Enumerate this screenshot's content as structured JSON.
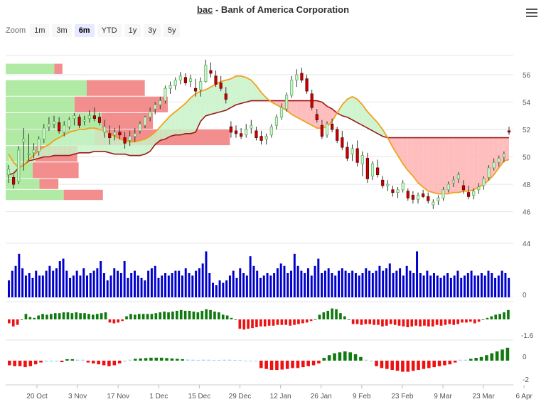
{
  "header": {
    "ticker": "bac",
    "title_rest": " - Bank of America Corporation"
  },
  "zoom": {
    "label": "Zoom",
    "buttons": [
      "1m",
      "3m",
      "6m",
      "YTD",
      "1y",
      "3y",
      "5y"
    ],
    "selected": "6m"
  },
  "menu_icon": "hamburger-menu-icon",
  "colors": {
    "up": "#5cb85c",
    "down": "#cc0000",
    "kijun": "#9a1b1b",
    "tenkan": "#f0a21c",
    "cloud_bull": "#c8f2c8",
    "cloud_bear": "#ffb3b3",
    "volume": "#0000cc",
    "vp_green": "#a8e89a",
    "vp_red": "#f28282",
    "vp_brown": "#d2a478",
    "macd_pos": "#107a10",
    "macd_neg": "#ee1111",
    "hist_light": "#9fd6ec"
  },
  "chart_data": [
    {
      "type": "candlestick",
      "title": "",
      "yticks": [
        46,
        48,
        50,
        52,
        54,
        56
      ],
      "ylim": [
        45.2,
        57.4
      ],
      "candles_approx": [
        [
          48.7,
          49.4,
          48.1,
          49.1
        ],
        [
          48.5,
          48.7,
          47.7,
          48.0
        ],
        [
          48.2,
          50.8,
          48.0,
          50.5
        ],
        [
          51.1,
          52.1,
          49.0,
          51.3
        ],
        [
          50.2,
          51.7,
          49.7,
          50.2
        ],
        [
          50.3,
          51.0,
          49.9,
          50.5
        ],
        [
          50.4,
          51.5,
          50.1,
          51.3
        ],
        [
          51.3,
          52.4,
          51.0,
          52.1
        ],
        [
          52.2,
          52.9,
          51.9,
          52.4
        ],
        [
          52.4,
          53.0,
          52.1,
          52.6
        ],
        [
          52.5,
          52.9,
          51.7,
          51.9
        ],
        [
          51.8,
          52.6,
          51.5,
          52.3
        ],
        [
          52.2,
          52.9,
          52.0,
          52.7
        ],
        [
          52.8,
          53.2,
          52.3,
          53.0
        ],
        [
          52.9,
          53.1,
          52.1,
          52.3
        ],
        [
          52.6,
          53.0,
          52.3,
          52.7
        ],
        [
          52.8,
          53.4,
          52.5,
          53.0
        ],
        [
          53.0,
          53.6,
          52.6,
          52.8
        ],
        [
          52.9,
          53.2,
          52.3,
          52.5
        ],
        [
          51.8,
          52.7,
          51.4,
          52.2
        ],
        [
          51.7,
          52.3,
          50.9,
          51.4
        ],
        [
          51.6,
          52.1,
          51.2,
          51.8
        ],
        [
          51.8,
          52.3,
          51.3,
          51.6
        ],
        [
          51.4,
          51.8,
          50.6,
          51.0
        ],
        [
          51.2,
          51.9,
          50.8,
          51.5
        ],
        [
          51.5,
          52.1,
          51.1,
          51.7
        ],
        [
          51.9,
          52.6,
          51.7,
          52.4
        ],
        [
          52.3,
          53.0,
          52.1,
          52.9
        ],
        [
          52.9,
          53.6,
          52.6,
          53.3
        ],
        [
          53.5,
          54.0,
          53.1,
          53.8
        ],
        [
          53.8,
          54.4,
          53.5,
          54.1
        ],
        [
          54.1,
          55.2,
          53.9,
          55.0
        ],
        [
          55.0,
          55.5,
          54.6,
          55.2
        ],
        [
          55.2,
          55.8,
          54.9,
          55.6
        ],
        [
          55.6,
          56.2,
          55.3,
          55.9
        ],
        [
          55.8,
          56.1,
          55.2,
          55.4
        ],
        [
          55.5,
          56.0,
          55.1,
          55.7
        ],
        [
          55.0,
          55.7,
          54.4,
          54.8
        ],
        [
          54.9,
          55.8,
          54.4,
          55.5
        ],
        [
          55.5,
          57.1,
          55.4,
          56.7
        ],
        [
          56.3,
          56.9,
          55.8,
          56.1
        ],
        [
          55.9,
          56.3,
          55.1,
          55.3
        ],
        [
          55.4,
          55.9,
          54.8,
          55.0
        ],
        [
          54.6,
          55.1,
          53.9,
          54.2
        ],
        [
          52.2,
          52.6,
          51.4,
          51.8
        ],
        [
          51.9,
          52.3,
          51.4,
          51.7
        ],
        [
          51.7,
          52.1,
          51.3,
          51.5
        ],
        [
          51.6,
          52.4,
          51.4,
          52.0
        ],
        [
          52.1,
          52.7,
          51.7,
          52.3
        ],
        [
          51.9,
          52.2,
          51.2,
          51.4
        ],
        [
          51.5,
          51.9,
          50.9,
          51.2
        ],
        [
          51.3,
          51.7,
          50.9,
          51.5
        ],
        [
          51.6,
          52.4,
          51.4,
          52.2
        ],
        [
          52.3,
          53.1,
          52.0,
          52.9
        ],
        [
          52.9,
          53.9,
          52.7,
          53.6
        ],
        [
          53.5,
          54.7,
          53.3,
          54.5
        ],
        [
          54.5,
          55.9,
          54.3,
          55.6
        ],
        [
          55.6,
          56.4,
          55.1,
          56.0
        ],
        [
          56.1,
          56.5,
          55.4,
          55.6
        ],
        [
          55.7,
          56.0,
          54.6,
          54.8
        ],
        [
          54.6,
          54.9,
          53.4,
          53.6
        ],
        [
          53.1,
          53.5,
          52.5,
          52.7
        ],
        [
          52.3,
          52.7,
          51.3,
          51.5
        ],
        [
          51.6,
          52.6,
          51.4,
          52.4
        ],
        [
          52.4,
          52.8,
          51.8,
          52.0
        ],
        [
          52.0,
          52.2,
          51.0,
          51.2
        ],
        [
          51.4,
          51.9,
          50.5,
          50.7
        ],
        [
          50.7,
          51.1,
          49.7,
          49.9
        ],
        [
          50.2,
          50.9,
          49.7,
          50.6
        ],
        [
          50.6,
          51.2,
          49.3,
          49.6
        ],
        [
          49.5,
          50.4,
          48.6,
          50.1
        ],
        [
          49.9,
          50.3,
          48.1,
          48.4
        ],
        [
          48.6,
          49.7,
          48.3,
          49.5
        ],
        [
          49.2,
          49.8,
          48.5,
          48.7
        ],
        [
          48.3,
          48.6,
          47.7,
          47.9
        ],
        [
          47.9,
          48.3,
          47.5,
          48.0
        ],
        [
          47.6,
          47.9,
          47.1,
          47.4
        ],
        [
          47.4,
          47.8,
          47.0,
          47.6
        ],
        [
          47.6,
          48.3,
          47.4,
          48.1
        ],
        [
          47.5,
          47.7,
          46.8,
          47.0
        ],
        [
          47.2,
          47.5,
          46.6,
          46.9
        ],
        [
          46.9,
          47.4,
          46.6,
          47.2
        ],
        [
          47.3,
          47.6,
          47.0,
          47.1
        ],
        [
          47.1,
          47.4,
          46.6,
          46.8
        ],
        [
          46.5,
          46.9,
          46.2,
          46.7
        ],
        [
          46.8,
          47.2,
          46.5,
          47.0
        ],
        [
          47.0,
          47.8,
          46.8,
          47.6
        ],
        [
          47.6,
          48.2,
          47.4,
          48.0
        ],
        [
          48.1,
          48.6,
          47.8,
          48.3
        ],
        [
          48.4,
          48.9,
          48.1,
          48.7
        ],
        [
          47.9,
          48.3,
          47.3,
          47.6
        ],
        [
          47.4,
          47.9,
          46.9,
          47.1
        ],
        [
          47.2,
          47.7,
          46.9,
          47.5
        ],
        [
          47.6,
          48.1,
          47.3,
          47.8
        ],
        [
          47.9,
          48.6,
          47.6,
          48.4
        ],
        [
          48.5,
          49.4,
          48.3,
          49.2
        ],
        [
          49.2,
          49.9,
          49.0,
          49.6
        ],
        [
          49.6,
          50.1,
          49.3,
          49.9
        ],
        [
          50.0,
          50.4,
          49.6,
          50.2
        ],
        [
          51.9,
          52.2,
          51.6,
          51.8
        ]
      ],
      "kijun_approx": [
        48.7,
        48.8,
        49.2,
        49.4,
        49.7,
        49.8,
        49.9,
        50.0,
        50.0,
        50.1,
        50.1,
        50.1,
        50.1,
        50.2,
        50.3,
        50.3,
        50.3,
        50.4,
        50.4,
        50.4,
        50.3,
        50.2,
        50.2,
        50.2,
        50.1,
        50.1,
        50.1,
        50.2,
        50.4,
        50.9,
        51.2,
        51.3,
        51.5,
        51.6,
        51.6,
        51.7,
        51.7,
        51.8,
        52.6,
        53.0,
        53.1,
        53.2,
        53.3,
        53.4,
        53.6,
        53.8,
        53.9,
        54.0,
        54.1,
        54.1,
        54.1,
        54.1,
        54.1,
        54.1,
        54.1,
        54.1,
        54.1,
        54.1,
        54.1,
        54.1,
        54.1,
        54.1,
        54.0,
        53.7,
        53.5,
        53.2,
        53.0,
        52.9,
        52.7,
        52.5,
        52.3,
        52.1,
        51.9,
        51.7,
        51.5,
        51.4,
        51.4,
        51.4,
        51.4,
        51.4,
        51.4,
        51.4,
        51.4,
        51.4,
        51.4,
        51.4,
        51.4,
        51.4,
        51.4,
        51.4,
        51.4,
        51.4,
        51.4,
        51.4,
        51.4,
        51.4,
        51.4,
        51.4,
        51.4,
        51.4
      ],
      "tenkan_approx": [
        50.2,
        49.6,
        49.2,
        49.4,
        49.8,
        50.1,
        50.5,
        50.7,
        50.9,
        51.2,
        51.4,
        51.6,
        51.8,
        51.9,
        52.0,
        52.0,
        52.1,
        52.1,
        52.0,
        51.9,
        51.7,
        51.5,
        51.3,
        51.2,
        51.1,
        51.1,
        51.2,
        51.3,
        51.5,
        51.8,
        52.2,
        52.6,
        53.0,
        53.3,
        53.6,
        53.9,
        54.3,
        54.6,
        54.8,
        54.9,
        55.1,
        55.3,
        55.5,
        55.6,
        55.7,
        55.9,
        55.9,
        55.8,
        55.6,
        55.2,
        54.7,
        54.3,
        54.0,
        53.8,
        53.6,
        53.4,
        53.1,
        52.9,
        52.7,
        52.5,
        52.3,
        52.1,
        52.1,
        52.2,
        52.6,
        53.2,
        53.8,
        54.2,
        54.4,
        54.2,
        53.8,
        53.3,
        52.9,
        52.5,
        52.0,
        51.4,
        50.7,
        50.1,
        49.5,
        49.0,
        48.6,
        48.1,
        47.8,
        47.5,
        47.4,
        47.3,
        47.3,
        47.3,
        47.4,
        47.4,
        47.5,
        47.5,
        47.6,
        47.8,
        48.0,
        48.3,
        48.7,
        49.2,
        49.7,
        49.8
      ],
      "volume_profile": [
        {
          "price_low": 56.0,
          "price_high": 56.8,
          "up": 0.36,
          "down": 0.06
        },
        {
          "price_low": 54.4,
          "price_high": 55.6,
          "up": 0.6,
          "down": 0.43
        },
        {
          "price_low": 53.2,
          "price_high": 54.4,
          "up": 0.51,
          "down": 0.69
        },
        {
          "price_low": 52.0,
          "price_high": 53.2,
          "up": 0.71,
          "down": 0.38
        },
        {
          "price_low": 50.8,
          "price_high": 52.0,
          "up": 0.66,
          "down": 1.0
        },
        {
          "price_low": 49.6,
          "price_high": 50.8,
          "up": 0.22,
          "down": 0.31
        },
        {
          "price_low": 48.4,
          "price_high": 49.6,
          "up": 0.2,
          "down": 0.34
        },
        {
          "price_low": 47.6,
          "price_high": 48.4,
          "up": 0.25,
          "down": 0.14
        },
        {
          "price_low": 46.8,
          "price_high": 47.6,
          "up": 0.43,
          "down": 0.29
        }
      ],
      "volume_label_top": "44",
      "volume_label_bottom": "0",
      "volume_relative": [
        0.35,
        0.55,
        0.65,
        0.9,
        0.6,
        0.45,
        0.5,
        0.4,
        0.55,
        0.45,
        0.45,
        0.55,
        0.65,
        0.55,
        0.6,
        0.75,
        0.8,
        0.55,
        0.4,
        0.45,
        0.55,
        0.45,
        0.6,
        0.45,
        0.5,
        0.55,
        0.6,
        0.75,
        0.5,
        0.35,
        0.45,
        0.6,
        0.55,
        0.5,
        0.75,
        0.4,
        0.5,
        0.55,
        0.45,
        0.4,
        0.35,
        0.55,
        0.6,
        0.65,
        0.4,
        0.45,
        0.5,
        0.45,
        0.5,
        0.55,
        0.55,
        0.45,
        0.6,
        0.5,
        0.45,
        0.55,
        0.6,
        0.7,
        0.95,
        0.5,
        0.3,
        0.25,
        0.35,
        0.3,
        0.35,
        0.45,
        0.55,
        0.4,
        0.6,
        0.5,
        0.45,
        0.85,
        0.65,
        0.55,
        0.4,
        0.45,
        0.5,
        0.45,
        0.5,
        0.6,
        0.7,
        0.65,
        0.5,
        0.55,
        0.9,
        0.65,
        0.55,
        0.5,
        0.6,
        0.45,
        0.65,
        0.8,
        0.5,
        0.55,
        0.6,
        0.5,
        0.45,
        0.55,
        0.6,
        0.55,
        0.5,
        0.55,
        0.5,
        0.45,
        0.5,
        0.6,
        0.55,
        0.5,
        0.55,
        0.65,
        0.55,
        0.6,
        0.7,
        0.5,
        0.55,
        0.6,
        0.45,
        0.65,
        0.55,
        0.5,
        0.95,
        0.5,
        0.45,
        0.55,
        0.45,
        0.5,
        0.45,
        0.4,
        0.45,
        0.5,
        0.4,
        0.45,
        0.55,
        0.4,
        0.45,
        0.5,
        0.55,
        0.45,
        0.45,
        0.5,
        0.45,
        0.55,
        0.5,
        0.4,
        0.45,
        0.55,
        0.5,
        0.4
      ],
      "macd_label": "-1.6",
      "macd_relative": [
        -0.25,
        -0.45,
        -0.35,
        0.0,
        0.35,
        0.15,
        0.1,
        0.25,
        0.35,
        0.3,
        0.35,
        0.4,
        0.4,
        0.45,
        0.45,
        0.4,
        0.45,
        0.4,
        0.4,
        0.35,
        0.3,
        0.35,
        0.4,
        0.45,
        -0.2,
        -0.25,
        -0.2,
        -0.1,
        0.2,
        0.35,
        0.3,
        0.35,
        0.35,
        0.35,
        0.35,
        0.4,
        0.45,
        0.5,
        0.45,
        0.5,
        0.55,
        0.6,
        0.55,
        0.55,
        0.5,
        0.45,
        0.55,
        0.65,
        0.6,
        0.5,
        0.45,
        0.3,
        0.25,
        0.1,
        0.0,
        -0.6,
        -0.65,
        -0.6,
        -0.55,
        -0.5,
        -0.45,
        -0.45,
        -0.4,
        -0.4,
        -0.35,
        -0.35,
        -0.35,
        -0.4,
        -0.35,
        -0.3,
        -0.25,
        -0.2,
        -0.1,
        0.0,
        0.3,
        0.45,
        0.55,
        0.7,
        0.65,
        0.4,
        0.2,
        0.0,
        -0.3,
        -0.3,
        -0.35,
        -0.3,
        -0.3,
        -0.35,
        -0.35,
        -0.45,
        -0.4,
        -0.3,
        -0.35,
        -0.4,
        -0.45,
        -0.5,
        -0.45,
        -0.4,
        -0.45,
        -0.4,
        -0.45,
        -0.45,
        -0.35,
        -0.4,
        -0.35,
        -0.3,
        -0.35,
        -0.3,
        -0.2,
        -0.2,
        -0.15,
        -0.25,
        -0.15,
        0.0,
        0.1,
        0.2,
        0.3,
        0.35,
        0.45,
        0.6
      ],
      "hist_label_top": "0",
      "hist_label_bottom": "-2",
      "hist_relative": [
        -0.25,
        -0.3,
        -0.3,
        -0.35,
        -0.3,
        -0.2,
        -0.1,
        -0.05,
        -0.05,
        -0.05,
        -0.08,
        0.08,
        0.08,
        0.05,
        0.05,
        -0.1,
        -0.15,
        -0.2,
        -0.25,
        -0.3,
        -0.25,
        -0.15,
        -0.05,
        0.05,
        0.1,
        0.12,
        0.14,
        0.16,
        0.16,
        0.16,
        0.14,
        0.12,
        0.1,
        0.08,
        0.06,
        0.05,
        0.04,
        0.05,
        0.05,
        0.04,
        0.04,
        0.05,
        0.05,
        0.04,
        0.03,
        -0.02,
        -0.02,
        -0.02,
        -0.4,
        -0.45,
        -0.5,
        -0.5,
        -0.48,
        -0.45,
        -0.4,
        -0.4,
        -0.35,
        -0.3,
        -0.25,
        -0.15,
        0.15,
        0.3,
        0.4,
        0.45,
        0.5,
        0.45,
        0.35,
        0.2,
        0.05,
        -0.05,
        -0.3,
        -0.4,
        -0.45,
        -0.5,
        -0.55,
        -0.6,
        -0.6,
        -0.55,
        -0.5,
        -0.45,
        -0.4,
        -0.35,
        -0.3,
        -0.25,
        -0.2,
        -0.1,
        0.05,
        0.05,
        0.1,
        0.15,
        0.2,
        0.3,
        0.4,
        0.5,
        0.6,
        0.7
      ]
    }
  ],
  "x_axis": {
    "labels": [
      "20 Oct",
      "3 Nov",
      "17 Nov",
      "1 Dec",
      "15 Dec",
      "29 Dec",
      "12 Jan",
      "26 Jan",
      "9 Feb",
      "23 Feb",
      "9 Mar",
      "23 Mar",
      "6 Apr"
    ]
  }
}
